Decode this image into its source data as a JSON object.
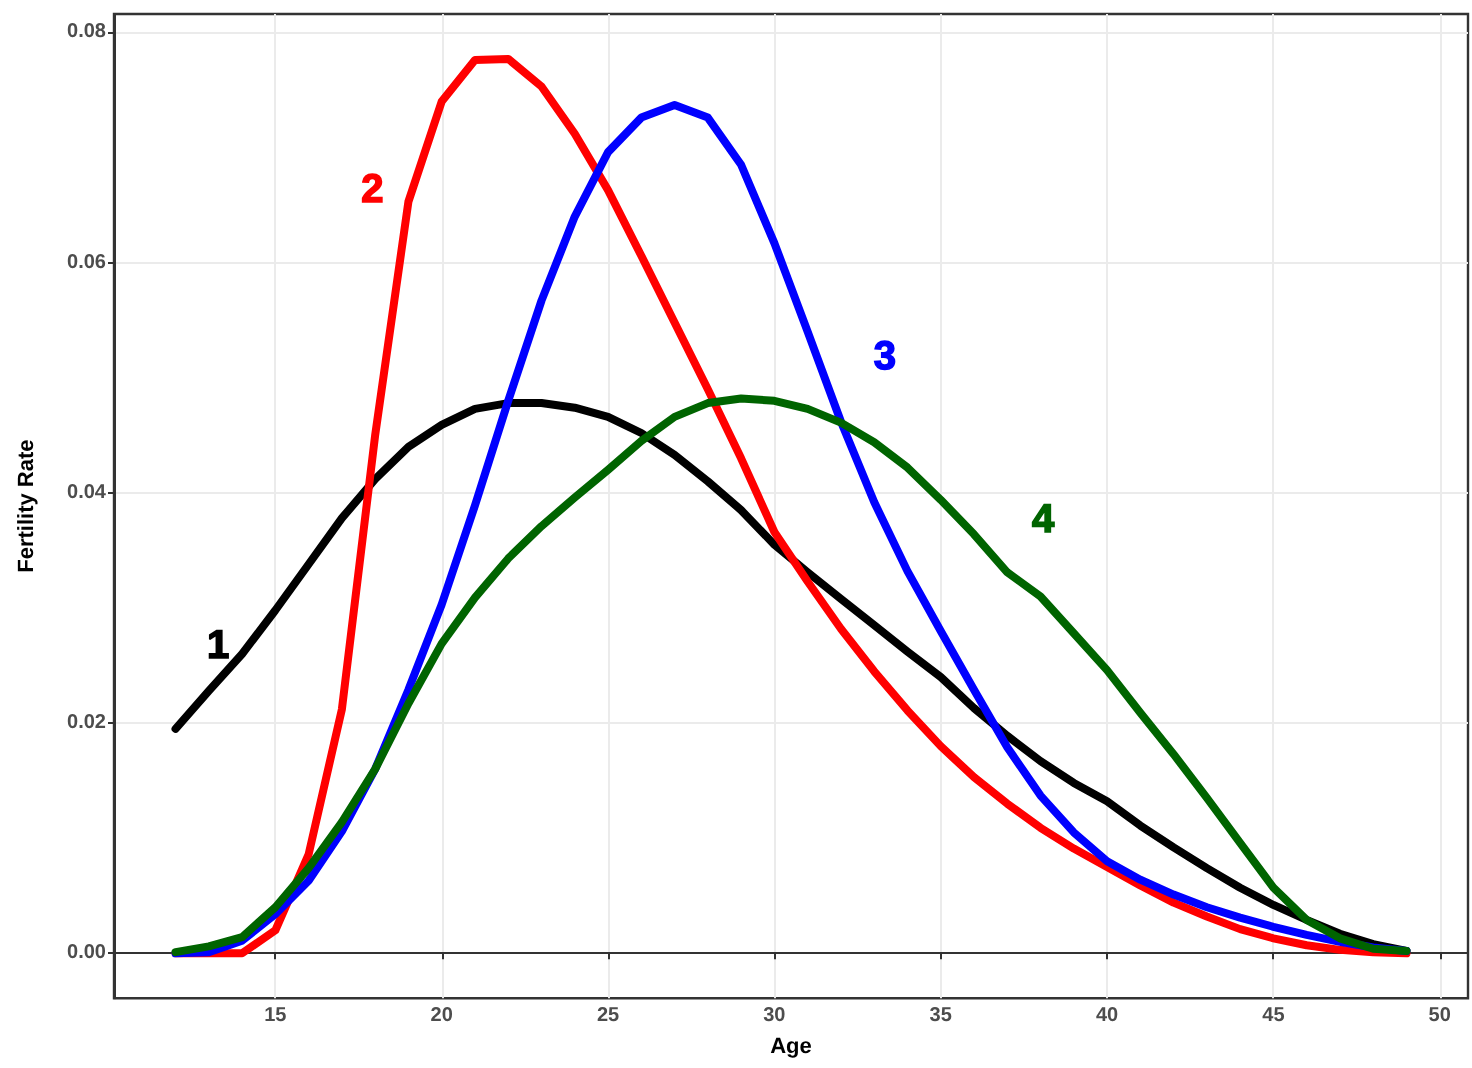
{
  "chart_data": {
    "type": "line",
    "xlabel": "Age",
    "ylabel": "Fertility Rate",
    "x": [
      12,
      13,
      14,
      15,
      16,
      17,
      18,
      19,
      20,
      21,
      22,
      23,
      24,
      25,
      26,
      27,
      28,
      29,
      30,
      31,
      32,
      33,
      34,
      35,
      36,
      37,
      38,
      39,
      40,
      41,
      42,
      43,
      44,
      45,
      46,
      47,
      48,
      49
    ],
    "series": [
      {
        "name": "1",
        "color": "#000000",
        "values": [
          0.0195,
          0.0228,
          0.026,
          0.0298,
          0.0338,
          0.0378,
          0.0412,
          0.044,
          0.0459,
          0.0473,
          0.0478,
          0.0478,
          0.0474,
          0.0466,
          0.0452,
          0.0433,
          0.041,
          0.0385,
          0.0355,
          0.0331,
          0.0308,
          0.0285,
          0.0262,
          0.024,
          0.0213,
          0.0189,
          0.0167,
          0.0148,
          0.0132,
          0.0111,
          0.0092,
          0.0074,
          0.0057,
          0.0042,
          0.0029,
          0.0017,
          0.0008,
          0.0002
        ]
      },
      {
        "name": "2",
        "color": "#ff0000",
        "values": [
          0,
          0,
          0,
          0.002,
          0.0086,
          0.0212,
          0.045,
          0.0653,
          0.074,
          0.0776,
          0.0777,
          0.0753,
          0.0712,
          0.0663,
          0.0606,
          0.0548,
          0.049,
          0.043,
          0.0366,
          0.0323,
          0.0282,
          0.0245,
          0.0211,
          0.018,
          0.0153,
          0.013,
          0.0109,
          0.0091,
          0.0075,
          0.0059,
          0.0044,
          0.0032,
          0.0021,
          0.0013,
          0.0007,
          0.0003,
          0.0001,
          0
        ]
      },
      {
        "name": "3",
        "color": "#0000ff",
        "values": [
          0,
          0.0001,
          0.0011,
          0.0034,
          0.0063,
          0.0106,
          0.016,
          0.0229,
          0.0303,
          0.0389,
          0.048,
          0.0567,
          0.064,
          0.0696,
          0.0726,
          0.0737,
          0.0726,
          0.0685,
          0.0617,
          0.054,
          0.0462,
          0.0392,
          0.0332,
          0.028,
          0.0229,
          0.0179,
          0.0137,
          0.0105,
          0.008,
          0.0064,
          0.0051,
          0.004,
          0.0031,
          0.0023,
          0.0016,
          0.001,
          0.0005,
          0.0002
        ]
      },
      {
        "name": "4",
        "color": "#006400",
        "values": [
          0.0001,
          0.0006,
          0.0014,
          0.004,
          0.0074,
          0.0114,
          0.016,
          0.0217,
          0.0269,
          0.0309,
          0.0343,
          0.0371,
          0.0396,
          0.042,
          0.0445,
          0.0466,
          0.0478,
          0.0482,
          0.048,
          0.0473,
          0.0461,
          0.0444,
          0.0422,
          0.0394,
          0.0364,
          0.0331,
          0.031,
          0.0278,
          0.0246,
          0.0209,
          0.0173,
          0.0135,
          0.0096,
          0.0057,
          0.0029,
          0.0013,
          0.0004,
          0.0002
        ]
      }
    ],
    "xlim": [
      10.15,
      50.85
    ],
    "xticks": [
      15,
      20,
      25,
      30,
      35,
      40,
      45,
      50
    ],
    "ylim": [
      -0.0039,
      0.0816
    ],
    "yticks": [
      {
        "value": 0,
        "label": "0.00"
      },
      {
        "value": 0.02,
        "label": "0.02"
      },
      {
        "value": 0.04,
        "label": "0.04"
      },
      {
        "value": 0.06,
        "label": "0.06"
      },
      {
        "value": 0.08,
        "label": "0.08"
      }
    ],
    "grid": true,
    "marker": "none",
    "line_style": "solid"
  }
}
